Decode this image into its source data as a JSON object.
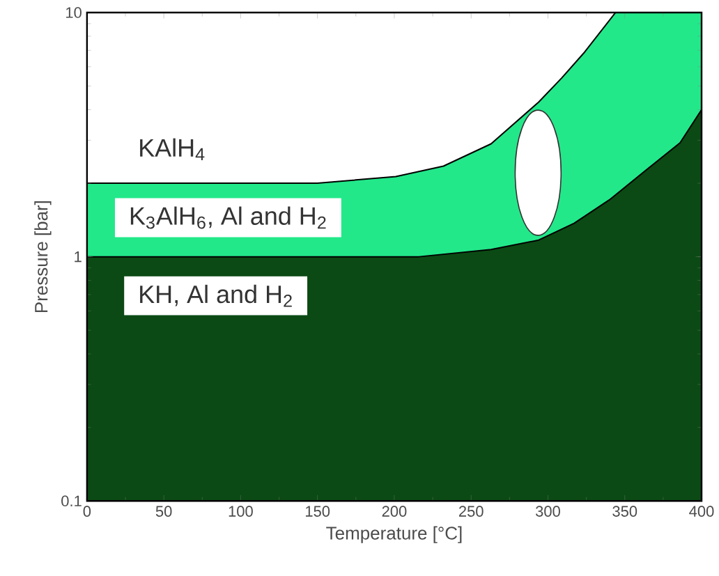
{
  "chart_data": {
    "type": "area",
    "xlabel": "Temperature [°C]",
    "ylabel": "Pressure [bar]",
    "log": "y",
    "xlim": [
      0,
      400
    ],
    "ylim": [
      0.1,
      10
    ],
    "xticks": [
      0,
      50,
      100,
      150,
      200,
      250,
      300,
      350,
      400
    ],
    "yticks": [
      0.1,
      1,
      10
    ],
    "series": [
      {
        "color": "#22e88a",
        "x": [
          0,
          150,
          201,
          232,
          263,
          294,
          309,
          324,
          344,
          400
        ],
        "values": [
          2,
          2,
          2.13,
          2.35,
          2.9,
          4.3,
          5.4,
          6.9,
          10,
          10
        ]
      },
      {
        "color": "#0b4a14",
        "x": [
          0,
          150,
          216,
          263,
          294,
          317,
          340,
          363,
          386,
          400
        ],
        "values": [
          1,
          1,
          1,
          1.07,
          1.17,
          1.37,
          1.71,
          2.24,
          2.93,
          4.0
        ]
      }
    ],
    "annotations": [
      "KAlH$_{4}$",
      "K$_{3}$AlH$_{6}$, Al and H$_{2}$",
      "KH, Al and H$_{2}$"
    ]
  }
}
